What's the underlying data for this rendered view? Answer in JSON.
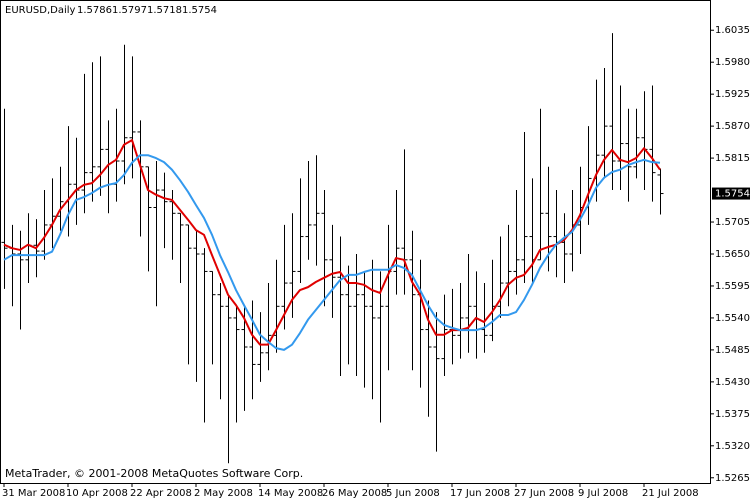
{
  "chart_data": {
    "type": "ohlc",
    "symbol": "EURUSD,Daily",
    "footer": "MetaTrader, © 2001-2008 MetaQuotes Software Corp.",
    "categories": [
      "31 Mar 2008",
      null,
      null,
      null,
      null,
      null,
      null,
      null,
      "10 Apr 2008",
      null,
      null,
      null,
      null,
      null,
      null,
      null,
      "22 Apr 2008",
      null,
      null,
      null,
      null,
      null,
      null,
      null,
      "2 May 2008",
      null,
      null,
      null,
      null,
      null,
      null,
      null,
      "14 May 2008",
      null,
      null,
      null,
      null,
      null,
      null,
      null,
      "26 May 2008",
      null,
      null,
      null,
      null,
      null,
      null,
      null,
      "5 Jun 2008",
      null,
      null,
      null,
      null,
      null,
      null,
      null,
      "17 Jun 2008",
      null,
      null,
      null,
      null,
      null,
      null,
      null,
      "27 Jun 2008",
      null,
      null,
      null,
      null,
      null,
      null,
      null,
      "9 Jul 2008",
      null,
      null,
      null,
      null,
      null,
      null,
      null,
      "21 Jul 2008",
      null,
      null
    ],
    "open": [
      1.567,
      1.566,
      1.565,
      1.564,
      1.5665,
      1.5655,
      1.57,
      1.5715,
      1.574,
      1.577,
      1.576,
      1.579,
      1.58,
      1.583,
      1.577,
      1.581,
      1.585,
      1.586,
      1.58,
      1.573,
      1.576,
      1.574,
      1.572,
      1.57,
      1.566,
      1.565,
      1.562,
      1.558,
      1.556,
      1.554,
      1.552,
      1.549,
      1.546,
      1.548,
      1.551,
      1.556,
      1.56,
      1.562,
      1.568,
      1.57,
      1.572,
      1.564,
      1.561,
      1.558,
      1.556,
      1.558,
      1.556,
      1.554,
      1.556,
      1.562,
      1.566,
      1.564,
      1.558,
      1.552,
      1.549,
      1.547,
      1.552,
      1.551,
      1.554,
      1.556,
      1.552,
      1.551,
      1.556,
      1.56,
      1.562,
      1.564,
      1.568,
      1.564,
      1.572,
      1.568,
      1.567,
      1.565,
      1.57,
      1.573,
      1.578,
      1.582,
      1.587,
      1.581,
      1.584,
      1.58,
      1.585,
      1.583,
      1.5786
    ],
    "high": [
      1.59,
      1.57,
      1.569,
      1.572,
      1.571,
      1.576,
      1.578,
      1.58,
      1.587,
      1.585,
      1.596,
      1.598,
      1.599,
      1.588,
      1.59,
      1.601,
      1.599,
      1.588,
      1.58,
      1.581,
      1.579,
      1.576,
      1.572,
      1.57,
      1.569,
      1.566,
      1.562,
      1.56,
      1.558,
      1.556,
      1.556,
      1.557,
      1.555,
      1.56,
      1.564,
      1.57,
      1.572,
      1.578,
      1.581,
      1.582,
      1.576,
      1.57,
      1.568,
      1.563,
      1.565,
      1.562,
      1.564,
      1.562,
      1.57,
      1.576,
      1.583,
      1.569,
      1.564,
      1.557,
      1.555,
      1.558,
      1.559,
      1.56,
      1.565,
      1.562,
      1.56,
      1.564,
      1.568,
      1.57,
      1.576,
      1.586,
      1.578,
      1.59,
      1.58,
      1.576,
      1.572,
      1.576,
      1.58,
      1.587,
      1.595,
      1.597,
      1.603,
      1.594,
      1.59,
      1.59,
      1.593,
      1.594,
      1.5797
    ],
    "low": [
      1.559,
      1.556,
      1.552,
      1.56,
      1.561,
      1.564,
      1.566,
      1.569,
      1.568,
      1.57,
      1.572,
      1.574,
      1.575,
      1.572,
      1.574,
      1.577,
      1.578,
      1.568,
      1.562,
      1.556,
      1.566,
      1.564,
      1.56,
      1.546,
      1.543,
      1.536,
      1.546,
      1.54,
      1.529,
      1.536,
      1.538,
      1.54,
      1.543,
      1.545,
      1.548,
      1.552,
      1.554,
      1.56,
      1.564,
      1.563,
      1.556,
      1.554,
      1.544,
      1.546,
      1.544,
      1.542,
      1.54,
      1.536,
      1.545,
      1.558,
      1.558,
      1.545,
      1.542,
      1.537,
      1.531,
      1.544,
      1.546,
      1.547,
      1.548,
      1.547,
      1.548,
      1.55,
      1.554,
      1.556,
      1.558,
      1.56,
      1.56,
      1.564,
      1.562,
      1.561,
      1.56,
      1.562,
      1.565,
      1.57,
      1.574,
      1.578,
      1.576,
      1.576,
      1.574,
      1.578,
      1.576,
      1.574,
      1.5718
    ],
    "close": [
      1.566,
      1.565,
      1.564,
      1.5665,
      1.5655,
      1.57,
      1.5715,
      1.574,
      1.577,
      1.576,
      1.579,
      1.58,
      1.583,
      1.577,
      1.581,
      1.585,
      1.586,
      1.58,
      1.573,
      1.576,
      1.574,
      1.572,
      1.57,
      1.566,
      1.565,
      1.562,
      1.558,
      1.556,
      1.554,
      1.552,
      1.549,
      1.546,
      1.548,
      1.551,
      1.556,
      1.56,
      1.562,
      1.568,
      1.57,
      1.572,
      1.564,
      1.561,
      1.558,
      1.556,
      1.558,
      1.556,
      1.554,
      1.556,
      1.562,
      1.566,
      1.564,
      1.558,
      1.552,
      1.549,
      1.547,
      1.552,
      1.551,
      1.554,
      1.556,
      1.552,
      1.551,
      1.556,
      1.56,
      1.562,
      1.564,
      1.568,
      1.564,
      1.572,
      1.568,
      1.567,
      1.565,
      1.57,
      1.573,
      1.578,
      1.582,
      1.587,
      1.581,
      1.584,
      1.58,
      1.585,
      1.583,
      1.579,
      1.5754
    ],
    "lines": [
      {
        "color": "#e00000",
        "values": [
          1.5666,
          1.566,
          1.5657,
          1.5666,
          1.566,
          1.5678,
          1.57,
          1.5726,
          1.5743,
          1.576,
          1.5769,
          1.5772,
          1.5786,
          1.5803,
          1.5812,
          1.5838,
          1.5846,
          1.5803,
          1.576,
          1.5752,
          1.5746,
          1.5743,
          1.5726,
          1.5709,
          1.5691,
          1.5683,
          1.5648,
          1.5614,
          1.558,
          1.5562,
          1.554,
          1.5511,
          1.5494,
          1.5494,
          1.5519,
          1.5545,
          1.5571,
          1.5588,
          1.5593,
          1.5602,
          1.5609,
          1.5616,
          1.5619,
          1.56,
          1.56,
          1.5597,
          1.5588,
          1.5583,
          1.5614,
          1.5643,
          1.564,
          1.5602,
          1.558,
          1.5537,
          1.5511,
          1.5511,
          1.5519,
          1.5519,
          1.5523,
          1.554,
          1.5533,
          1.555,
          1.5571,
          1.5597,
          1.5609,
          1.5614,
          1.5631,
          1.5657,
          1.5662,
          1.5666,
          1.5674,
          1.5691,
          1.5717,
          1.5752,
          1.5786,
          1.5812,
          1.5829,
          1.5812,
          1.5808,
          1.5815,
          1.5832,
          1.5815,
          1.5795
        ]
      },
      {
        "color": "#3399ee",
        "values": [
          1.564,
          1.5648,
          1.5648,
          1.5648,
          1.5648,
          1.5648,
          1.5654,
          1.5683,
          1.5717,
          1.5743,
          1.5748,
          1.5755,
          1.5764,
          1.5769,
          1.5772,
          1.5786,
          1.5807,
          1.582,
          1.582,
          1.5815,
          1.5808,
          1.5795,
          1.5777,
          1.5757,
          1.5734,
          1.5712,
          1.5683,
          1.5648,
          1.5619,
          1.5588,
          1.5562,
          1.5537,
          1.5511,
          1.5499,
          1.5488,
          1.5485,
          1.5494,
          1.5514,
          1.5537,
          1.5554,
          1.5571,
          1.5588,
          1.5605,
          1.5614,
          1.5614,
          1.5619,
          1.5623,
          1.5623,
          1.5623,
          1.5631,
          1.5626,
          1.5614,
          1.5588,
          1.5562,
          1.554,
          1.5528,
          1.5523,
          1.5519,
          1.5519,
          1.5519,
          1.5523,
          1.5533,
          1.5545,
          1.5545,
          1.555,
          1.5571,
          1.5597,
          1.5626,
          1.5648,
          1.5666,
          1.5678,
          1.5688,
          1.5709,
          1.5734,
          1.5764,
          1.5781,
          1.5791,
          1.5795,
          1.5803,
          1.5808,
          1.5812,
          1.5808,
          1.5807
        ]
      }
    ],
    "ylim": [
      1.5256,
      1.6087
    ],
    "yticks": [
      1.6035,
      {
        "value": 1.598,
        "label": "1.5980"
      },
      1.5925,
      {
        "value": 1.587,
        "label": "1.5870"
      },
      1.5815,
      1.5705,
      {
        "value": 1.565,
        "label": "1.5650"
      },
      1.5595,
      {
        "value": 1.554,
        "label": "1.5540"
      },
      1.5485,
      {
        "value": 1.543,
        "label": "1.5430"
      },
      1.5375,
      {
        "value": 1.532,
        "label": "1.5320"
      },
      1.5265
    ],
    "bar_color": "#000000"
  }
}
